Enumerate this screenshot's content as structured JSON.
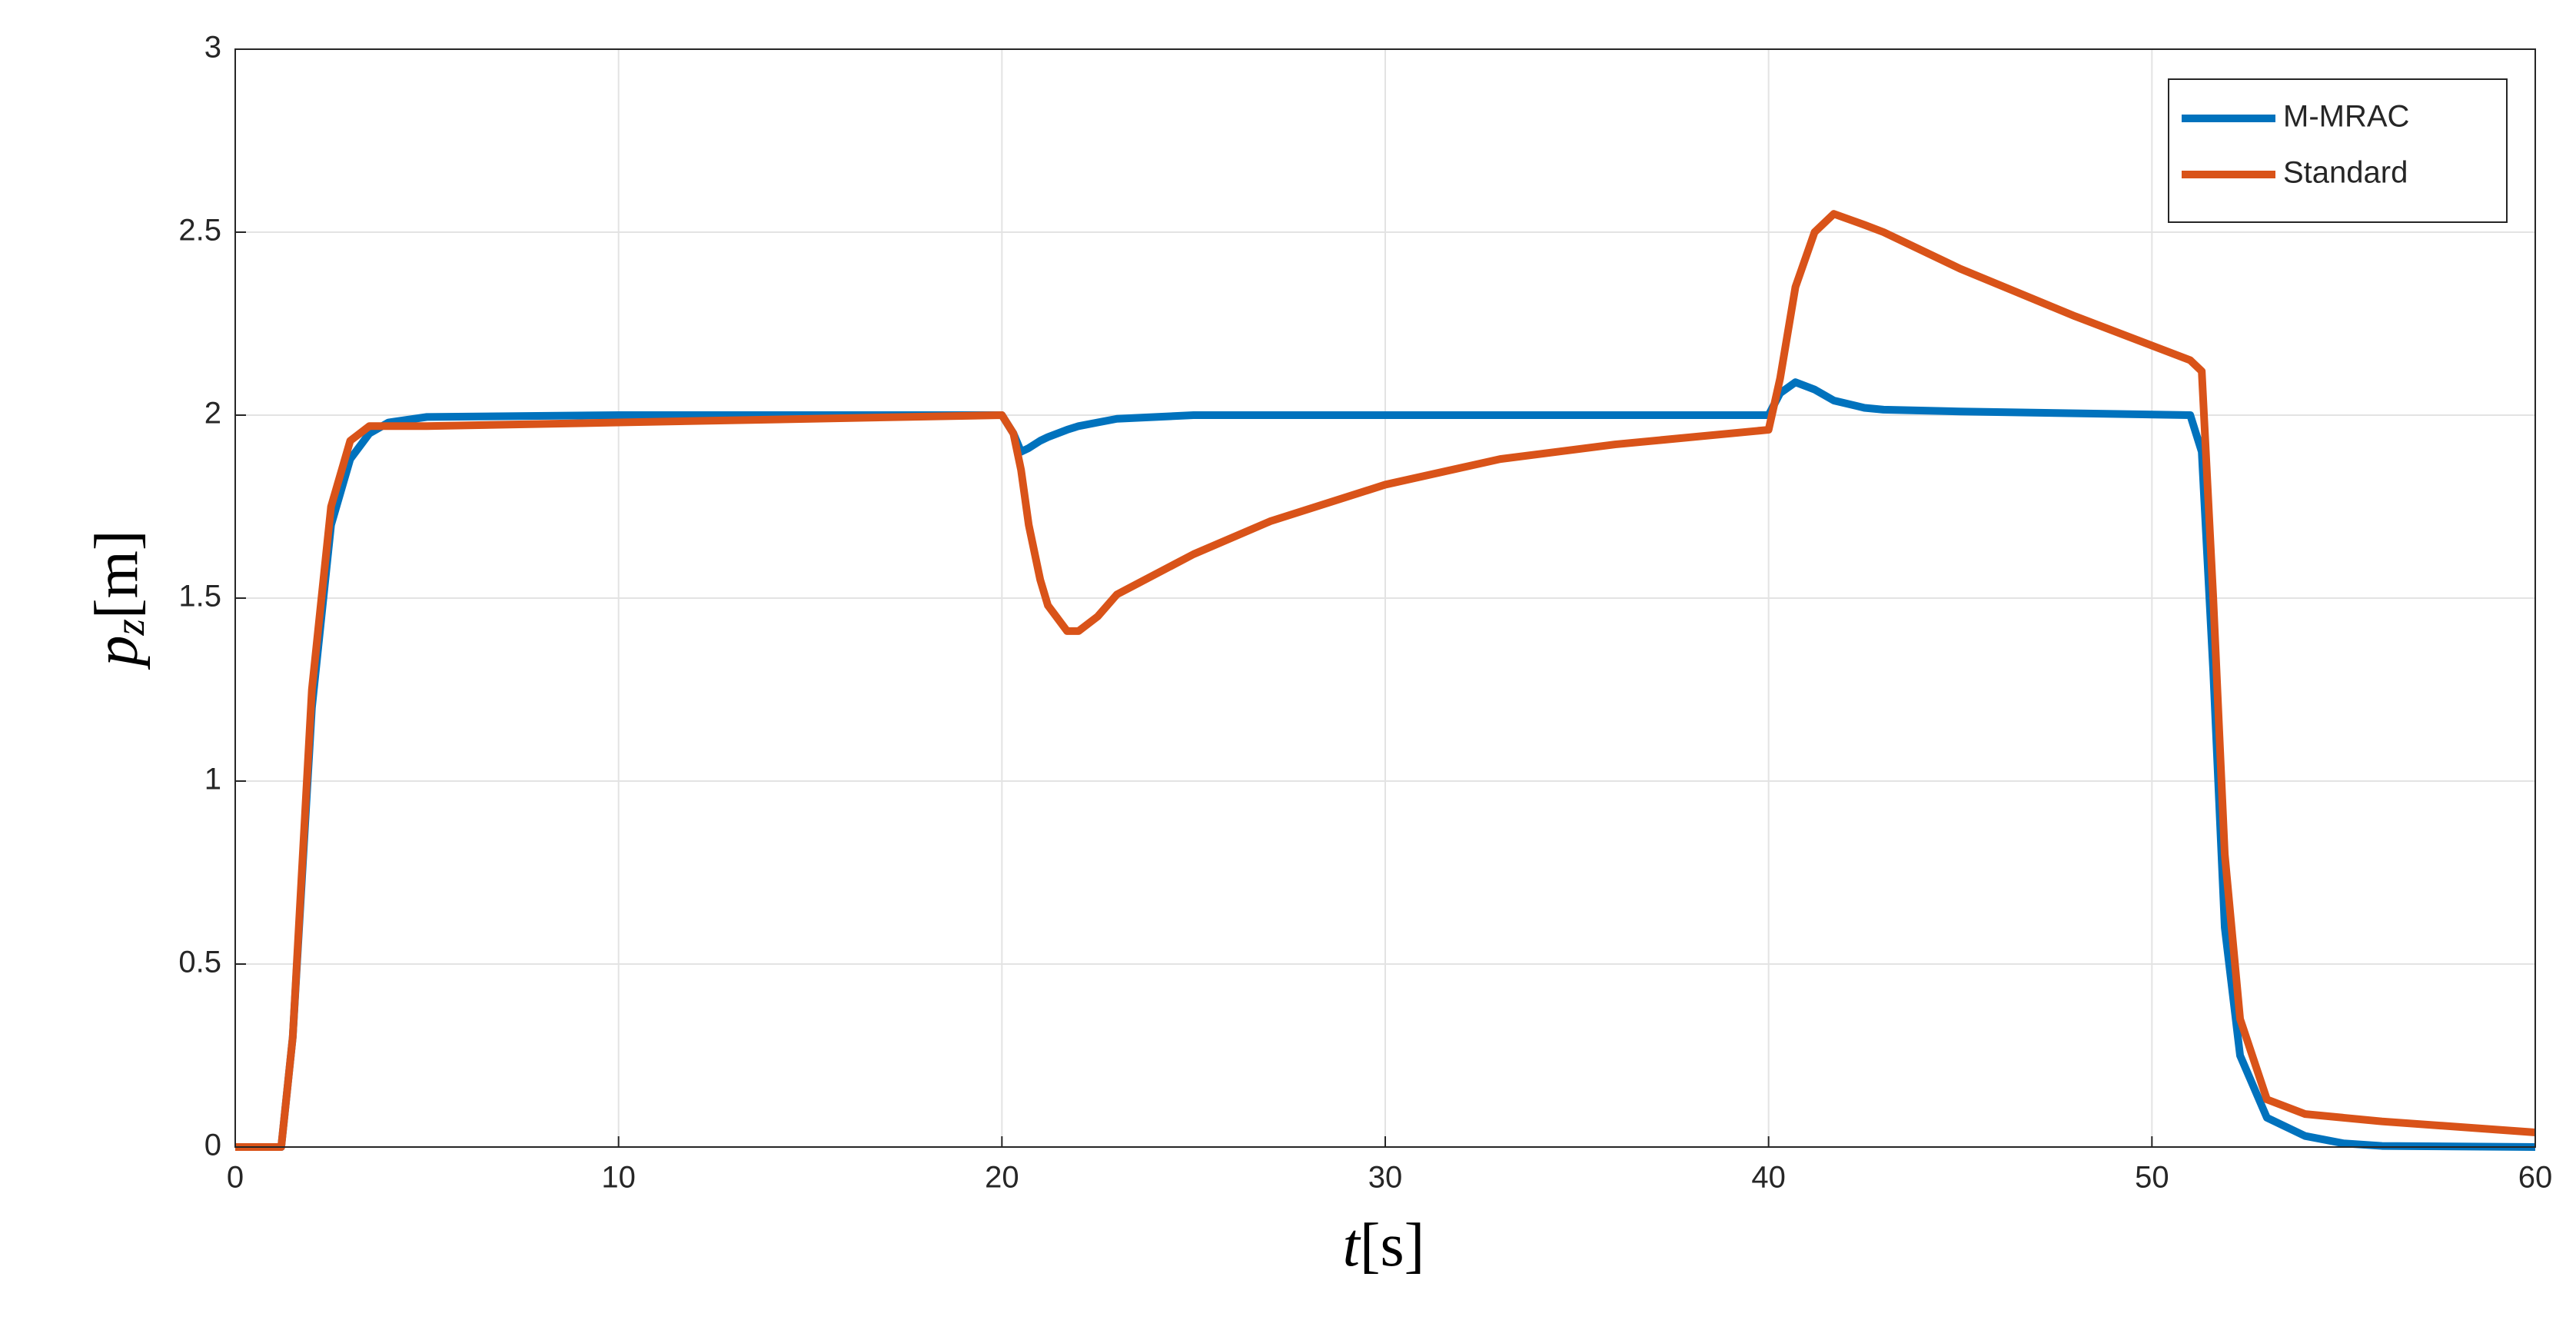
{
  "chart_data": {
    "type": "line",
    "xlabel": {
      "base": "t",
      "rest": "[s]"
    },
    "ylabel": {
      "base": "p",
      "sub": "z",
      "rest": "[m]"
    },
    "x": [
      0,
      1.2,
      1.5,
      2,
      2.5,
      3,
      3.5,
      4,
      5,
      10,
      20,
      20.3,
      20.5,
      20.7,
      21,
      21.2,
      21.7,
      22,
      22.5,
      23,
      25,
      27,
      30,
      33,
      36,
      40,
      40.3,
      40.7,
      41.2,
      41.7,
      42.5,
      43,
      45,
      48,
      51,
      51.3,
      51.6,
      51.9,
      52.3,
      53,
      54,
      55,
      56,
      60
    ],
    "series": [
      {
        "name": "M-MRAC",
        "color": "#0072bd",
        "values": [
          0,
          0,
          0.3,
          1.2,
          1.7,
          1.88,
          1.95,
          1.98,
          1.995,
          2,
          2,
          1.95,
          1.9,
          1.91,
          1.93,
          1.94,
          1.96,
          1.97,
          1.98,
          1.99,
          2,
          2,
          2,
          2,
          2,
          2,
          2.06,
          2.09,
          2.07,
          2.04,
          2.02,
          2.015,
          2.01,
          2.005,
          2,
          1.9,
          1.3,
          0.6,
          0.25,
          0.08,
          0.03,
          0.01,
          0.003,
          0
        ]
      },
      {
        "name": "Standard",
        "color": "#d95319",
        "values": [
          0,
          0,
          0.3,
          1.25,
          1.75,
          1.93,
          1.97,
          1.97,
          1.97,
          1.98,
          2,
          1.95,
          1.85,
          1.7,
          1.55,
          1.48,
          1.41,
          1.41,
          1.45,
          1.51,
          1.62,
          1.71,
          1.81,
          1.88,
          1.92,
          1.96,
          2.1,
          2.35,
          2.5,
          2.55,
          2.52,
          2.5,
          2.4,
          2.27,
          2.15,
          2.12,
          1.5,
          0.8,
          0.35,
          0.13,
          0.09,
          0.08,
          0.07,
          0.04
        ]
      }
    ],
    "xlim": [
      0,
      60
    ],
    "xticks": [
      0,
      10,
      20,
      30,
      40,
      50,
      60
    ],
    "ylim": [
      0,
      3
    ],
    "yticks": [
      0,
      0.5,
      1,
      1.5,
      2,
      2.5,
      3
    ],
    "grid": true,
    "legend": "top-right"
  }
}
